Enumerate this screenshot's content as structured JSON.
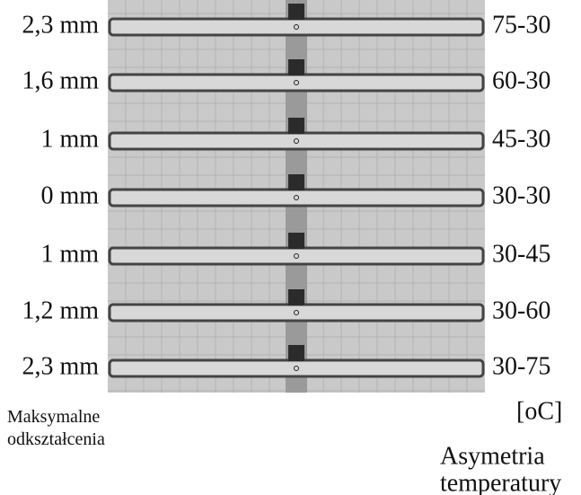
{
  "left_labels": [
    "2,3 mm",
    "1,6 mm",
    "1 mm",
    "0 mm",
    "1 mm",
    "1,2 mm",
    "2,3 mm"
  ],
  "right_labels": [
    "75-30",
    "60-30",
    "45-30",
    "30-30",
    "30-45",
    "30-60",
    "30-75"
  ],
  "unit": "[oC]",
  "left_caption": [
    "Maksymalne",
    "odkształcenia"
  ],
  "right_caption": [
    "Asymetria",
    "temperatury"
  ]
}
